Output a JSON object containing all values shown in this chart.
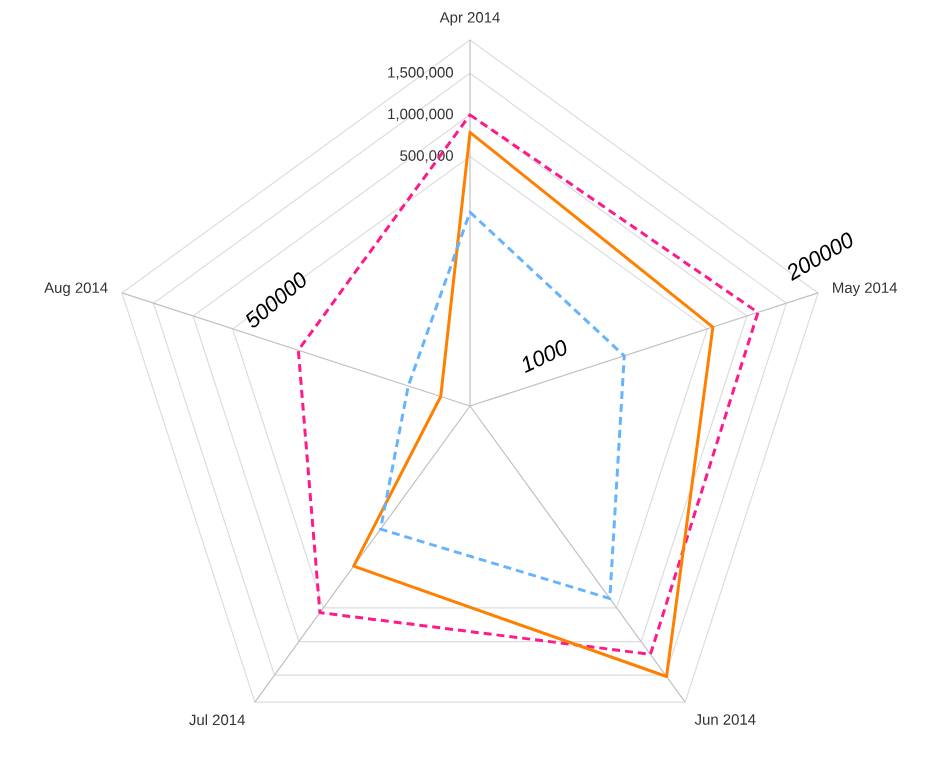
{
  "chart_data": {
    "type": "radar",
    "categories": [
      "Apr 2014",
      "May 2014",
      "Jun 2014",
      "Jul 2014",
      "Aug 2014"
    ],
    "ylim": [
      -2500000,
      1900000
    ],
    "yticks": [
      {
        "value": 500000,
        "label": "500,000"
      },
      {
        "value": 1000000,
        "label": "1,000,000"
      },
      {
        "value": 1500000,
        "label": "1,500,000"
      }
    ],
    "grid": true,
    "series": [
      {
        "color": "#ff1a8c",
        "line_style": "dashed",
        "values": [
          1000000,
          1140000,
          1190000,
          570000,
          -330000
        ]
      },
      {
        "color": "#ff8000",
        "line_style": "solid",
        "values": [
          790000,
          570000,
          1520000,
          -120000,
          -2130000
        ]
      },
      {
        "color": "#66b3ff",
        "line_style": "dashed",
        "values": [
          -170000,
          -550000,
          360000,
          -670000,
          -1720000
        ]
      }
    ],
    "annotations": [
      "1000",
      "200000",
      "500000"
    ]
  }
}
